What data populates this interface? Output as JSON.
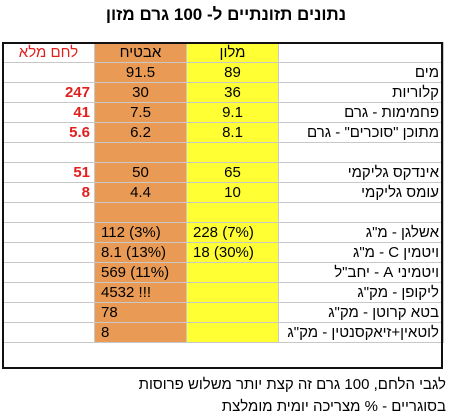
{
  "title": {
    "prefix": "נתונים תזונתיים ל-",
    "number": "100",
    "suffix": "גרם מזון"
  },
  "columns": {
    "melon": "מלון",
    "avocado": "אבטיח",
    "bread": "לחם מלא"
  },
  "rows": [
    {
      "label": "מים",
      "melon": "89",
      "avocado": "91.5",
      "bread": ""
    },
    {
      "label": "קלוריות",
      "melon": "36",
      "avocado": "30",
      "bread": "247"
    },
    {
      "label": "פחמימות - גרם",
      "melon": "9.1",
      "avocado": "7.5",
      "bread": "41"
    },
    {
      "label": "מתוכן \"סוכרים\" - גרם",
      "melon": "8.1",
      "avocado": "6.2",
      "bread": "5.6"
    },
    {
      "label": "",
      "melon": "",
      "avocado": "",
      "bread": ""
    },
    {
      "label": "אינדקס גליקמי",
      "melon": "65",
      "avocado": "50",
      "bread": "51"
    },
    {
      "label": "עומס גליקמי",
      "melon": "10",
      "avocado": "4.4",
      "bread": "8"
    },
    {
      "label": "",
      "melon": "",
      "avocado": "",
      "bread": ""
    },
    {
      "label": "אשלגן - מ\"ג",
      "melon": "228 (7%)",
      "avocado": "112 (3%)",
      "bread": ""
    },
    {
      "label": "ויטמין C - מ\"ג",
      "melon": "18 (30%)",
      "avocado": "8.1 (13%)",
      "bread": ""
    },
    {
      "label": "ויטמיני A - יחב\"ל",
      "melon": "",
      "avocado": "569 (11%)",
      "bread": ""
    },
    {
      "label": "ליקופן - מק\"ג",
      "melon": "",
      "avocado": "4532 !!!",
      "bread": ""
    },
    {
      "label": "בטא קרוטן - מק\"ג",
      "melon": "",
      "avocado": "78",
      "bread": ""
    },
    {
      "label": "לוטאין+זיאקסנטין - מק\"ג",
      "melon": "",
      "avocado": "8",
      "bread": ""
    }
  ],
  "footnotes": [
    "לגבי הלחם, 100 גרם זה קצת יותר משלוש פרוסות",
    "בסוגריים - % מצריכה יומית מומלצת"
  ],
  "colors": {
    "melon_fill": "#ffff33",
    "avocado_fill": "#e99a55",
    "bread_text": "#e0201f"
  }
}
